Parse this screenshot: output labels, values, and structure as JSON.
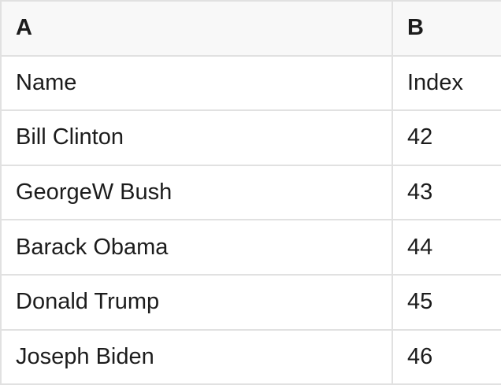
{
  "table": {
    "column_headers": [
      "A",
      "B"
    ],
    "rows": [
      [
        "Name",
        "Index"
      ],
      [
        "Bill Clinton",
        "42"
      ],
      [
        "GeorgeW Bush",
        "43"
      ],
      [
        "Barack Obama",
        "44"
      ],
      [
        "Donald Trump",
        "45"
      ],
      [
        "Joseph Biden",
        "46"
      ]
    ]
  },
  "colors": {
    "header_bg": "#f8f8f8",
    "border": "#e1e1e1",
    "text": "#1c1c1c",
    "cell_bg": "#ffffff"
  }
}
